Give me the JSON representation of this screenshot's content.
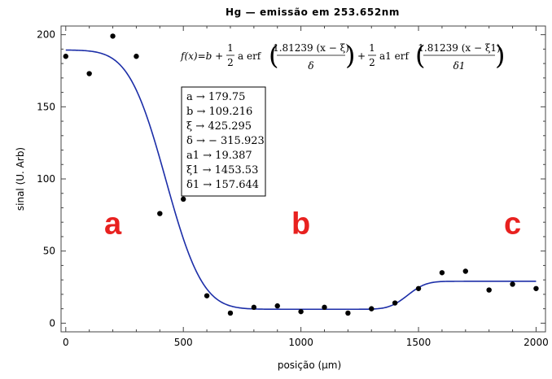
{
  "chart_data": {
    "type": "scatter",
    "title": "Hg — emissão em 253.652nm",
    "xlabel": "posição (μm)",
    "ylabel": "sinal (U. Arb)",
    "xlim": [
      -20,
      2040
    ],
    "ylim": [
      -6,
      206
    ],
    "x_ticks": [
      0,
      500,
      1000,
      1500,
      2000
    ],
    "y_ticks": [
      0,
      50,
      100,
      150,
      200
    ],
    "x_tick_labels": [
      "0",
      "500",
      "1000",
      "1500",
      "2000"
    ],
    "y_tick_labels": [
      "0",
      "50",
      "100",
      "150",
      "200"
    ],
    "grid": false,
    "series": [
      {
        "kind": "points",
        "x": [
          0,
          100,
          200,
          300,
          400,
          500,
          600,
          700,
          800,
          900,
          1000,
          1100,
          1200,
          1300,
          1400,
          1500,
          1600,
          1700,
          1800,
          1900,
          2000
        ],
        "y": [
          185,
          173,
          199,
          185,
          76,
          86,
          19,
          7,
          11,
          12,
          8,
          11,
          7,
          10,
          14,
          24,
          35,
          36,
          23,
          27,
          24
        ],
        "color": "#000000"
      },
      {
        "kind": "fit",
        "function": "f(x)=b + a/2 erf(1.81239 (x - ξ)/δ) + a1/2 erf(1.81239 (x - ξ1)/δ1)",
        "params": {
          "a": 179.75,
          "b": 109.216,
          "xi": 425.295,
          "delta": -315.923,
          "a1": 19.387,
          "xi1": 1453.53,
          "delta1": 157.644
        },
        "color": "#1c2ea8"
      }
    ],
    "formula_text": {
      "lhs": "f(x)=b +",
      "half": [
        "1",
        "2"
      ],
      "term1_coef": "a erf",
      "term1_num": "1.81239 (x − ξ)",
      "term1_den": "δ",
      "plus": "+",
      "term2_coef": "a1 erf",
      "term2_num": "1.81239 (x − ξ1)",
      "term2_den": "δ1"
    },
    "param_lines": [
      "a → 179.75",
      "b → 109.216",
      "ξ → 425.295",
      "δ → − 315.923",
      "a1 → 19.387",
      "ξ1 → 1453.53",
      "δ1 → 157.644"
    ],
    "region_labels": [
      {
        "text": "a",
        "x": 200,
        "y": 62
      },
      {
        "text": "b",
        "x": 1000,
        "y": 62
      },
      {
        "text": "c",
        "x": 1900,
        "y": 62
      }
    ],
    "region_color": "#e8211f"
  }
}
